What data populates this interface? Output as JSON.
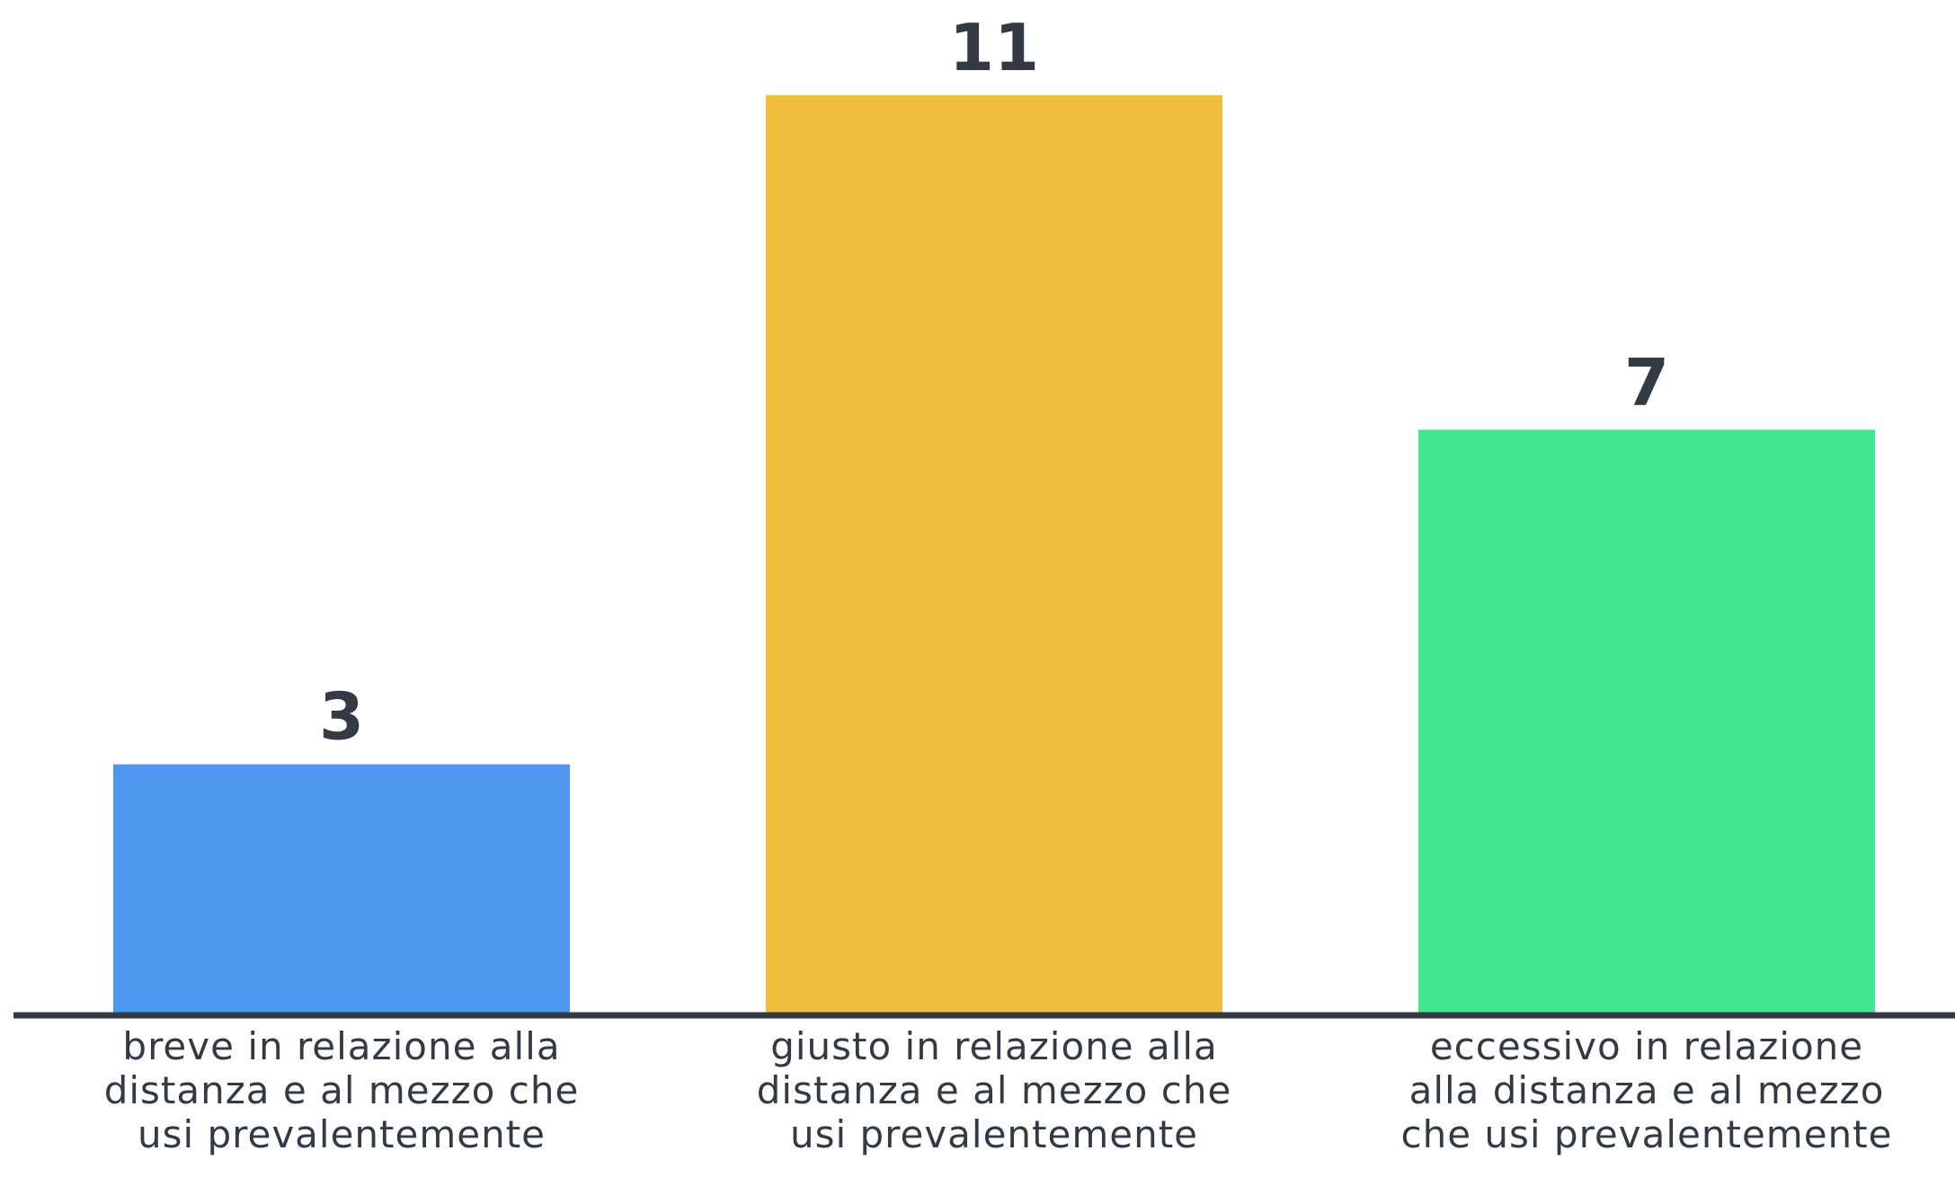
{
  "chart_data": {
    "type": "bar",
    "categories": [
      "breve in relazione alla distanza e al mezzo che usi prevalentemente",
      "giusto in relazione alla distanza e al mezzo che usi prevalentemente",
      "eccessivo in relazione alla distanza e al mezzo che usi prevalentemente"
    ],
    "values": [
      3,
      11,
      7
    ],
    "data_labels": [
      "3",
      "11",
      "7"
    ],
    "colors": [
      "#4d97ef",
      "#f0bd40",
      "#45e690"
    ],
    "ylim": [
      0,
      11
    ],
    "title": "",
    "xlabel": "",
    "ylabel": "",
    "grid": false,
    "legend": "none"
  }
}
